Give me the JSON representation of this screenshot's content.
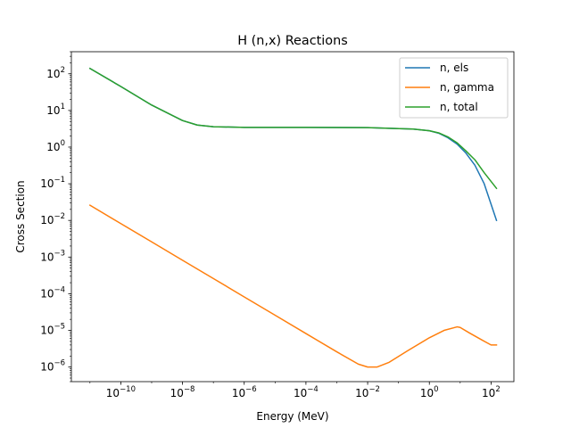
{
  "chart_data": {
    "type": "line",
    "title": "H (n,x) Reactions",
    "xlabel": "Energy (MeV)",
    "ylabel": "Cross Section",
    "xscale": "log",
    "yscale": "log",
    "xlim": [
      2.5e-12,
      550
    ],
    "ylim": [
      4e-07,
      400
    ],
    "grid": false,
    "legend_position": "top-right",
    "x_ticks": [
      {
        "value": 1e-10,
        "base": "10",
        "exp": "−10"
      },
      {
        "value": 1e-08,
        "base": "10",
        "exp": "−8"
      },
      {
        "value": 1e-06,
        "base": "10",
        "exp": "−6"
      },
      {
        "value": 0.0001,
        "base": "10",
        "exp": "−4"
      },
      {
        "value": 0.01,
        "base": "10",
        "exp": "−2"
      },
      {
        "value": 1,
        "base": "10",
        "exp": "0"
      },
      {
        "value": 100,
        "base": "10",
        "exp": "2"
      }
    ],
    "y_ticks": [
      {
        "value": 1e-06,
        "base": "10",
        "exp": "−6"
      },
      {
        "value": 1e-05,
        "base": "10",
        "exp": "−5"
      },
      {
        "value": 0.0001,
        "base": "10",
        "exp": "−4"
      },
      {
        "value": 0.001,
        "base": "10",
        "exp": "−3"
      },
      {
        "value": 0.01,
        "base": "10",
        "exp": "−2"
      },
      {
        "value": 0.1,
        "base": "10",
        "exp": "−1"
      },
      {
        "value": 1,
        "base": "10",
        "exp": "0"
      },
      {
        "value": 10,
        "base": "10",
        "exp": "1"
      },
      {
        "value": 100,
        "base": "10",
        "exp": "2"
      }
    ],
    "series": [
      {
        "name": "n, els",
        "color": "#1f77b4",
        "x": [
          1e-11,
          1e-10,
          1e-09,
          1e-08,
          3e-08,
          1e-07,
          1e-06,
          0.0001,
          0.01,
          0.3,
          1,
          2,
          4,
          8,
          15,
          30,
          60,
          150
        ],
        "y": [
          140,
          45,
          14,
          5.3,
          4.0,
          3.6,
          3.45,
          3.45,
          3.4,
          3.1,
          2.8,
          2.4,
          1.8,
          1.2,
          0.7,
          0.32,
          0.1,
          0.01
        ]
      },
      {
        "name": "n, gamma",
        "color": "#ff7f0e",
        "x": [
          1e-11,
          1e-10,
          1e-09,
          1e-08,
          1e-07,
          1e-06,
          1e-05,
          0.0001,
          0.001,
          0.005,
          0.01,
          0.02,
          0.05,
          0.2,
          1,
          3,
          8,
          10,
          20,
          50,
          100,
          150
        ],
        "y": [
          0.026,
          0.0082,
          0.0026,
          0.00082,
          0.00026,
          8.2e-05,
          2.6e-05,
          8.2e-06,
          2.6e-06,
          1.2e-06,
          1e-06,
          1e-06,
          1.35e-06,
          2.8e-06,
          6.3e-06,
          1e-05,
          1.25e-05,
          1.2e-05,
          8.5e-06,
          5.5e-06,
          4e-06,
          4e-06
        ]
      },
      {
        "name": "n, total",
        "color": "#2ca02c",
        "x": [
          1e-11,
          1e-10,
          1e-09,
          1e-08,
          3e-08,
          1e-07,
          1e-06,
          0.0001,
          0.01,
          0.3,
          1,
          2,
          4,
          8,
          15,
          30,
          60,
          150
        ],
        "y": [
          140,
          45,
          14,
          5.3,
          4.0,
          3.6,
          3.45,
          3.45,
          3.4,
          3.1,
          2.8,
          2.45,
          1.9,
          1.3,
          0.8,
          0.45,
          0.2,
          0.075
        ]
      }
    ]
  }
}
